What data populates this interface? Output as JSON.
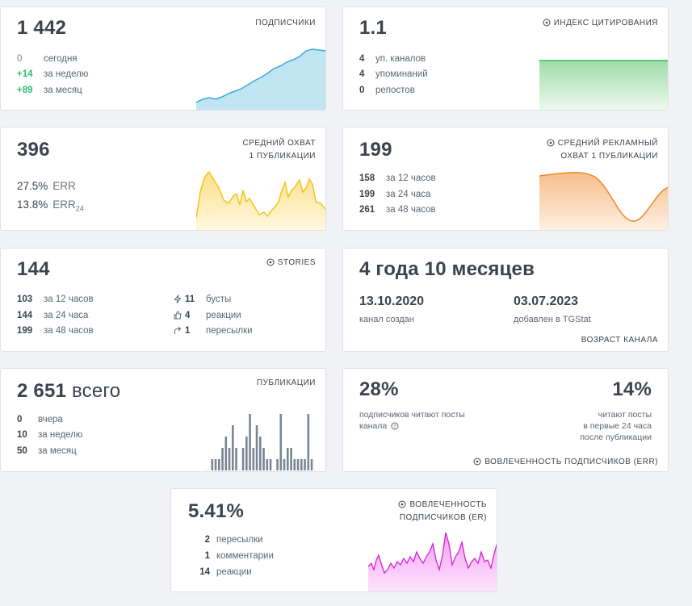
{
  "subscribers": {
    "value": "1 442",
    "label": "ПОДПИСЧИКИ",
    "stats": [
      {
        "n": "0",
        "t": "сегодня"
      },
      {
        "n": "+14",
        "t": "за неделю"
      },
      {
        "n": "+89",
        "t": "за месяц"
      }
    ],
    "color": "#5cbfe0"
  },
  "citation": {
    "value": "1.1",
    "label": "ИНДЕКС ЦИТИРОВАНИЯ",
    "icon": "info-icon",
    "stats": [
      {
        "n": "4",
        "t": "уп. каналов"
      },
      {
        "n": "4",
        "t": "упоминаний"
      },
      {
        "n": "0",
        "t": "репостов"
      }
    ],
    "color": "#3cb55a"
  },
  "avg_reach": {
    "value": "396",
    "label_line1": "СРЕДНИЙ ОХВАТ",
    "label_line2": "1 ПУБЛИКАЦИИ",
    "err_value": "27.5%",
    "err_label": "ERR",
    "err24_value": "13.8%",
    "err24_label": "ERR",
    "err24_sub": "24",
    "color": "#f5c518"
  },
  "ad_reach": {
    "value": "199",
    "label_line1": "СРЕДНИЙ РЕКЛАМНЫЙ",
    "label_line2": "ОХВАТ 1 ПУБЛИКАЦИИ",
    "icon": "info-icon",
    "stats": [
      {
        "n": "158",
        "t": "за 12 часов"
      },
      {
        "n": "199",
        "t": "за 24 часа"
      },
      {
        "n": "261",
        "t": "за 48 часов"
      }
    ],
    "color": "#f0892a"
  },
  "stories": {
    "value": "144",
    "label": "STORIES",
    "icon": "info-icon",
    "stats": [
      {
        "n": "103",
        "t": "за 12 часов"
      },
      {
        "n": "144",
        "t": "за 24 часа"
      },
      {
        "n": "199",
        "t": "за 48 часов"
      }
    ],
    "stats_right": [
      {
        "icon": "lightning-icon",
        "n": "11",
        "t": "бусты"
      },
      {
        "icon": "thumbs-up-icon",
        "n": "4",
        "t": "реакции"
      },
      {
        "icon": "share-arrow-icon",
        "n": "1",
        "t": "пересылки"
      }
    ]
  },
  "channel_age": {
    "value": "4 года 10 месяцев",
    "created_date": "13.10.2020",
    "created_label": "канал создан",
    "added_date": "03.07.2023",
    "added_label": "добавлен в TGStat",
    "label": "ВОЗРАСТ КАНАЛА"
  },
  "publications": {
    "value": "2 651",
    "value_suffix": "всего",
    "label": "ПУБЛИКАЦИИ",
    "stats": [
      {
        "n": "0",
        "t": "вчера"
      },
      {
        "n": "10",
        "t": "за неделю"
      },
      {
        "n": "50",
        "t": "за месяц"
      }
    ],
    "color": "#7a8694"
  },
  "engagement_err": {
    "left_value": "28%",
    "left_text_line1": "подписчиков читают посты",
    "left_text_line2": "канала",
    "right_value": "14%",
    "right_text_line1": "читают посты",
    "right_text_line2": "в первые 24 часа",
    "right_text_line3": "после публикации",
    "label": "ВОВЛЕЧЕННОСТЬ ПОДПИСЧИКОВ (ERR)",
    "icon": "info-icon"
  },
  "engagement_er": {
    "value": "5.41%",
    "label_line1": "ВОВЛЕЧЕННОСТЬ",
    "label_line2": "ПОДПИСЧИКОВ (ER)",
    "icon": "info-icon",
    "stats": [
      {
        "n": "2",
        "t": "пересылки"
      },
      {
        "n": "1",
        "t": "комментарии"
      },
      {
        "n": "14",
        "t": "реакции"
      }
    ],
    "color": "#e83ee8"
  }
}
